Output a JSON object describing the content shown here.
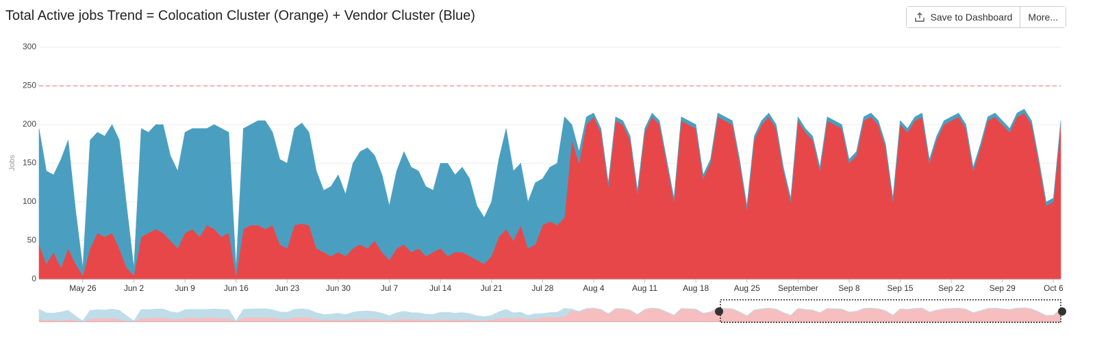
{
  "chart_data": {
    "type": "stacked_area",
    "title": "Total Active jobs Trend = Colocation Cluster (Orange) + Vendor Cluster (Blue)",
    "y_label": "Jobs",
    "buttons": [
      "Save to Dashboard",
      "More..."
    ],
    "ylim": [
      0,
      300
    ],
    "yticks": [
      0,
      50,
      100,
      150,
      200,
      250,
      300
    ],
    "grid": true,
    "reference_line": {
      "value": 250,
      "color": "#f29a9a"
    },
    "categories": [
      null,
      null,
      null,
      null,
      null,
      null,
      "May 26",
      null,
      null,
      null,
      null,
      null,
      null,
      "Jun 2",
      null,
      null,
      null,
      null,
      null,
      null,
      "Jun 9",
      null,
      null,
      null,
      null,
      null,
      null,
      "Jun 16",
      null,
      null,
      null,
      null,
      null,
      null,
      "Jun 23",
      null,
      null,
      null,
      null,
      null,
      null,
      "Jun 30",
      null,
      null,
      null,
      null,
      null,
      null,
      "Jul 7",
      null,
      null,
      null,
      null,
      null,
      null,
      "Jul 14",
      null,
      null,
      null,
      null,
      null,
      null,
      "Jul 21",
      null,
      null,
      null,
      null,
      null,
      null,
      "Jul 28",
      null,
      null,
      null,
      null,
      null,
      null,
      "Aug 4",
      null,
      null,
      null,
      null,
      null,
      null,
      "Aug 11",
      null,
      null,
      null,
      null,
      null,
      null,
      "Aug 18",
      null,
      null,
      null,
      null,
      null,
      null,
      "Aug 25",
      null,
      null,
      null,
      null,
      null,
      null,
      "September",
      null,
      null,
      null,
      null,
      null,
      null,
      "Sep 8",
      null,
      null,
      null,
      null,
      null,
      null,
      "Sep 15",
      null,
      null,
      null,
      null,
      null,
      null,
      "Sep 22",
      null,
      null,
      null,
      null,
      null,
      null,
      "Sep 29",
      null,
      null,
      null,
      null,
      null,
      null,
      "Oct 6",
      null
    ],
    "series": [
      {
        "color": "#e8474a",
        "values": [
          45,
          20,
          35,
          15,
          40,
          20,
          5,
          40,
          60,
          55,
          60,
          40,
          15,
          5,
          55,
          60,
          65,
          60,
          50,
          40,
          60,
          65,
          55,
          70,
          65,
          55,
          60,
          5,
          65,
          70,
          70,
          65,
          70,
          45,
          40,
          70,
          72,
          70,
          40,
          35,
          30,
          35,
          30,
          40,
          45,
          40,
          50,
          35,
          25,
          40,
          45,
          35,
          40,
          30,
          35,
          40,
          30,
          35,
          35,
          30,
          25,
          20,
          30,
          55,
          65,
          50,
          70,
          40,
          45,
          70,
          75,
          70,
          80,
          180,
          150,
          200,
          210,
          190,
          120,
          205,
          200,
          180,
          110,
          190,
          210,
          200,
          150,
          100,
          205,
          200,
          195,
          130,
          150,
          210,
          205,
          200,
          150,
          90,
          180,
          200,
          210,
          195,
          140,
          100,
          205,
          190,
          180,
          140,
          205,
          200,
          195,
          150,
          160,
          205,
          210,
          200,
          170,
          100,
          200,
          190,
          205,
          210,
          150,
          180,
          200,
          205,
          210,
          195,
          140,
          170,
          205,
          210,
          200,
          190,
          210,
          215,
          200,
          150,
          95,
          100,
          200
        ]
      },
      {
        "color": "#4a9fc0",
        "values": [
          150,
          120,
          100,
          140,
          140,
          70,
          10,
          140,
          130,
          130,
          140,
          140,
          80,
          10,
          140,
          130,
          135,
          140,
          110,
          100,
          130,
          130,
          140,
          125,
          135,
          140,
          130,
          10,
          130,
          130,
          135,
          140,
          120,
          110,
          110,
          125,
          130,
          120,
          100,
          80,
          90,
          100,
          80,
          110,
          120,
          130,
          110,
          100,
          70,
          100,
          120,
          110,
          100,
          90,
          80,
          110,
          120,
          100,
          110,
          100,
          70,
          60,
          70,
          100,
          130,
          90,
          80,
          60,
          80,
          60,
          70,
          80,
          130,
          20,
          15,
          10,
          5,
          5,
          5,
          5,
          5,
          5,
          5,
          5,
          5,
          5,
          5,
          5,
          5,
          5,
          5,
          5,
          5,
          5,
          5,
          5,
          5,
          5,
          5,
          5,
          5,
          5,
          5,
          5,
          5,
          5,
          5,
          5,
          5,
          5,
          5,
          5,
          5,
          5,
          5,
          5,
          5,
          5,
          5,
          5,
          5,
          5,
          5,
          5,
          5,
          5,
          5,
          5,
          5,
          5,
          5,
          5,
          5,
          5,
          5,
          5,
          5,
          5,
          5,
          5,
          5
        ]
      }
    ]
  }
}
